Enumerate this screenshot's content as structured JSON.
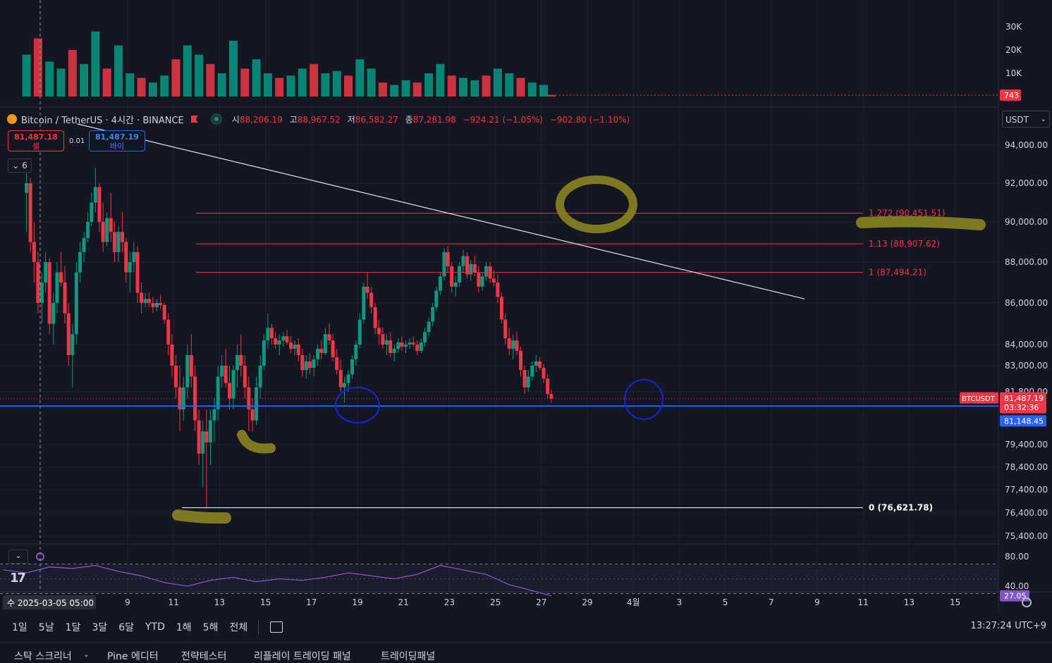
{
  "legend": {
    "symbol": "Bitcoin / TetherUS · 4시간 · BINANCE",
    "open_label": "시",
    "open": "88,206.19",
    "high_label": "고",
    "high": "88,967.52",
    "low_label": "저",
    "low": "86,582.27",
    "close_label": "종",
    "close": "87,281.98",
    "change": "−924.21 (−1.05%)",
    "change2": "−902.80 (−1.10%)"
  },
  "trade": {
    "sell_price": "81,487.18",
    "sell_label": "셀",
    "buy_price": "81,487.19",
    "buy_label": "바이",
    "spread": "0.01"
  },
  "indicators_collapse": "6",
  "currency": "USDT",
  "colors": {
    "up": "#089981",
    "down": "#f23645",
    "bg": "#131722",
    "grid": "#1e222d",
    "hline": "#2962ff",
    "fib": "#f23645",
    "highlighter": "#8a8420",
    "circle": "#1a23d6"
  },
  "chart_data": {
    "type": "candlestick",
    "main_y_ticks": [
      "94,000.00",
      "92,000.00",
      "90,000.00",
      "88,000.00",
      "86,000.00",
      "84,000.00",
      "83,000.00",
      "81,800.00",
      "79,400.00",
      "78,400.00",
      "77,400.00",
      "76,400.00",
      "75,400.00"
    ],
    "volume_ticks": [
      "30K",
      "20K",
      "10K"
    ],
    "volume_last": "743",
    "x_ticks": [
      "9",
      "11",
      "13",
      "15",
      "17",
      "19",
      "21",
      "23",
      "25",
      "27",
      "29",
      "4월",
      "3",
      "5",
      "7",
      "9",
      "11",
      "13",
      "15"
    ],
    "crosshair_date": "수 2025-03-05  05:00",
    "fib_levels": [
      {
        "ratio": "1.272",
        "value": 90451.51,
        "label": "1.272 (90,451.51)"
      },
      {
        "ratio": "1.13",
        "value": 88907.62,
        "label": "1.13 (88,907.62)"
      },
      {
        "ratio": "1",
        "value": 87494.21,
        "label": "1 (87,494.21)"
      },
      {
        "ratio": "0",
        "value": 76621.78,
        "label": "0 (76,621.78)"
      }
    ],
    "horizontal_line": {
      "value": 81148.45,
      "label": "81,148.45"
    },
    "last_price": {
      "symbol": "BTCUSDT",
      "value": "81,487.19",
      "countdown": "03:32:36"
    },
    "trendline": {
      "from": [
        3.2,
        95100
      ],
      "to": [
        34.85,
        86200
      ]
    },
    "rsi": {
      "ticks": [
        "80.00",
        "40.00"
      ],
      "last": "27.05"
    },
    "candles": [
      [
        1,
        91500,
        92500,
        89500,
        92000
      ],
      [
        1.17,
        92000,
        92300,
        88500,
        89000
      ],
      [
        1.33,
        89000,
        90000,
        87000,
        88000
      ],
      [
        1.5,
        88000,
        88500,
        85500,
        86000
      ],
      [
        1.67,
        86000,
        87500,
        85000,
        87000
      ],
      [
        1.83,
        87000,
        88500,
        86500,
        88000
      ],
      [
        2,
        88000,
        88200,
        84500,
        85000
      ],
      [
        2.17,
        85000,
        86500,
        84000,
        86000
      ],
      [
        2.33,
        86000,
        88000,
        85500,
        87500
      ],
      [
        2.5,
        87500,
        88500,
        86800,
        87000
      ],
      [
        2.67,
        87000,
        87800,
        85000,
        85500
      ],
      [
        2.83,
        85500,
        86000,
        83000,
        83500
      ],
      [
        3,
        83500,
        85000,
        82000,
        84500
      ],
      [
        3.17,
        84500,
        88000,
        84000,
        87500
      ],
      [
        3.33,
        87500,
        89000,
        87000,
        88500
      ],
      [
        3.5,
        88500,
        89500,
        88000,
        89200
      ],
      [
        3.67,
        89200,
        90500,
        89000,
        90000
      ],
      [
        3.83,
        90000,
        91500,
        89800,
        91000
      ],
      [
        4,
        91000,
        92800,
        90500,
        91800
      ],
      [
        4.17,
        91800,
        92000,
        89500,
        90000
      ],
      [
        4.33,
        90000,
        91000,
        88500,
        89000
      ],
      [
        4.5,
        89000,
        90500,
        88800,
        90200
      ],
      [
        4.67,
        90200,
        91500,
        89000,
        89500
      ],
      [
        4.83,
        89500,
        90000,
        88000,
        88500
      ],
      [
        5,
        88500,
        89800,
        88000,
        89500
      ],
      [
        5.17,
        89500,
        90500,
        88500,
        89000
      ],
      [
        5.33,
        89000,
        89200,
        87000,
        87500
      ],
      [
        5.5,
        87500,
        88500,
        86500,
        88000
      ],
      [
        5.67,
        88000,
        89000,
        87500,
        88500
      ],
      [
        5.83,
        88500,
        88800,
        86000,
        86500
      ],
      [
        6,
        86500,
        87000,
        85500,
        86000
      ],
      [
        6.17,
        86000,
        86500,
        85800,
        86200
      ],
      [
        6.33,
        86200,
        86500,
        85800,
        86000
      ],
      [
        6.5,
        86000,
        86300,
        85500,
        85800
      ],
      [
        6.67,
        85800,
        86200,
        85600,
        86000
      ],
      [
        6.83,
        86000,
        86400,
        85700,
        85900
      ],
      [
        7,
        85900,
        86000,
        85000,
        85200
      ],
      [
        7.17,
        85200,
        85500,
        83500,
        84000
      ],
      [
        7.33,
        84000,
        84500,
        82500,
        83000
      ],
      [
        7.5,
        83000,
        83500,
        81500,
        82000
      ],
      [
        7.67,
        82000,
        83000,
        80000,
        81000
      ],
      [
        7.83,
        81000,
        82500,
        80500,
        82000
      ],
      [
        8,
        82000,
        84000,
        81500,
        83500
      ],
      [
        8.17,
        83500,
        84500,
        82000,
        82500
      ],
      [
        8.33,
        82500,
        83000,
        80000,
        80500
      ],
      [
        8.5,
        80500,
        81000,
        78500,
        79000
      ],
      [
        8.67,
        79000,
        80500,
        77500,
        80000
      ],
      [
        8.83,
        80000,
        81000,
        76600,
        79500
      ],
      [
        9,
        79500,
        81000,
        78500,
        80500
      ],
      [
        9.17,
        80500,
        81500,
        79500,
        81000
      ],
      [
        9.33,
        81000,
        83000,
        80500,
        82500
      ],
      [
        9.5,
        82500,
        83500,
        82000,
        83000
      ],
      [
        9.67,
        83000,
        83800,
        82000,
        82200
      ],
      [
        9.83,
        82200,
        83000,
        81000,
        81500
      ],
      [
        10,
        81500,
        83000,
        81000,
        82800
      ],
      [
        10.17,
        82800,
        84000,
        82000,
        83500
      ],
      [
        10.33,
        83500,
        84500,
        82500,
        83000
      ],
      [
        10.5,
        83000,
        83500,
        81500,
        82000
      ],
      [
        10.67,
        82000,
        82500,
        80000,
        81000
      ],
      [
        10.83,
        81000,
        81500,
        80000,
        80500
      ],
      [
        11,
        80500,
        82500,
        80300,
        82000
      ],
      [
        11.17,
        82000,
        83500,
        81500,
        83000
      ],
      [
        11.33,
        83000,
        84500,
        82800,
        84200
      ],
      [
        11.5,
        84200,
        85500,
        83800,
        84800
      ],
      [
        11.67,
        84800,
        85000,
        84000,
        84300
      ],
      [
        11.83,
        84300,
        84600,
        83800,
        84000
      ],
      [
        12,
        84000,
        84500,
        83500,
        84200
      ],
      [
        12.17,
        84200,
        84600,
        83900,
        84400
      ],
      [
        12.33,
        84400,
        84700,
        84000,
        84100
      ],
      [
        12.5,
        84100,
        84400,
        83600,
        83800
      ],
      [
        12.67,
        83800,
        84200,
        83500,
        84000
      ],
      [
        12.83,
        84000,
        84300,
        83200,
        83500
      ],
      [
        13,
        83500,
        83800,
        82500,
        82800
      ],
      [
        13.17,
        82800,
        83500,
        82400,
        83200
      ],
      [
        13.33,
        83200,
        83600,
        82600,
        82900
      ],
      [
        13.5,
        82900,
        83500,
        82500,
        83300
      ],
      [
        13.67,
        83300,
        84000,
        83000,
        83800
      ],
      [
        13.83,
        83800,
        84200,
        83300,
        83600
      ],
      [
        14,
        83600,
        84800,
        83500,
        84500
      ],
      [
        14.17,
        84500,
        85000,
        84000,
        84200
      ],
      [
        14.33,
        84200,
        84500,
        83200,
        83400
      ],
      [
        14.5,
        83400,
        83800,
        82600,
        82800
      ],
      [
        14.67,
        82800,
        83300,
        81800,
        82000
      ],
      [
        14.83,
        82000,
        82500,
        81300,
        82200
      ],
      [
        15,
        82200,
        82800,
        81800,
        82600
      ],
      [
        15.17,
        82600,
        83500,
        82400,
        83300
      ],
      [
        15.33,
        83300,
        84200,
        83000,
        84000
      ],
      [
        15.5,
        84000,
        85500,
        83800,
        85200
      ],
      [
        15.67,
        85200,
        87000,
        85000,
        86800
      ],
      [
        15.83,
        86800,
        87500,
        86200,
        86500
      ],
      [
        16,
        86500,
        86800,
        85500,
        85800
      ],
      [
        16.17,
        85800,
        86000,
        84500,
        84800
      ],
      [
        16.33,
        84800,
        85200,
        84000,
        84500
      ],
      [
        16.5,
        84500,
        84800,
        83800,
        84000
      ],
      [
        16.67,
        84000,
        84500,
        83500,
        84200
      ],
      [
        16.83,
        84200,
        84600,
        83400,
        83600
      ],
      [
        17,
        83600,
        84000,
        83200,
        83800
      ],
      [
        17.17,
        83800,
        84300,
        83600,
        84100
      ],
      [
        17.33,
        84100,
        84400,
        83700,
        83900
      ],
      [
        17.5,
        83900,
        84200,
        83600,
        84000
      ],
      [
        17.67,
        84000,
        84300,
        83800,
        84100
      ],
      [
        17.83,
        84100,
        84400,
        83900,
        84000
      ],
      [
        18,
        84000,
        84200,
        83500,
        83700
      ],
      [
        18.17,
        83700,
        84300,
        83600,
        84100
      ],
      [
        18.33,
        84100,
        84800,
        83900,
        84600
      ],
      [
        18.5,
        84600,
        85300,
        84400,
        85100
      ],
      [
        18.67,
        85100,
        86000,
        84900,
        85800
      ],
      [
        18.83,
        85800,
        86800,
        85600,
        86600
      ],
      [
        19,
        86600,
        87500,
        86400,
        87300
      ],
      [
        19.17,
        87300,
        88700,
        87100,
        88500
      ],
      [
        19.33,
        88500,
        88800,
        87500,
        87800
      ],
      [
        19.5,
        87800,
        88000,
        86500,
        86800
      ],
      [
        19.67,
        86800,
        87300,
        86300,
        87000
      ],
      [
        19.83,
        87000,
        88000,
        86800,
        87800
      ],
      [
        20,
        87800,
        88600,
        87500,
        88300
      ],
      [
        20.17,
        88300,
        88500,
        87200,
        87400
      ],
      [
        20.33,
        87400,
        88100,
        87100,
        87900
      ],
      [
        20.5,
        87900,
        88300,
        87300,
        87500
      ],
      [
        20.67,
        87500,
        87800,
        86500,
        86800
      ],
      [
        20.83,
        86800,
        87500,
        86600,
        87300
      ],
      [
        21,
        87300,
        88000,
        87100,
        87800
      ],
      [
        21.17,
        87800,
        88000,
        87000,
        87200
      ],
      [
        21.33,
        87200,
        87600,
        86800,
        87000
      ],
      [
        21.5,
        87000,
        87400,
        86000,
        86300
      ],
      [
        21.67,
        86300,
        86500,
        85000,
        85200
      ],
      [
        21.83,
        85200,
        85500,
        84000,
        84300
      ],
      [
        22,
        84300,
        84800,
        83500,
        83800
      ],
      [
        22.17,
        83800,
        84500,
        83300,
        84200
      ],
      [
        22.33,
        84200,
        84600,
        83500,
        83700
      ],
      [
        22.5,
        83700,
        83900,
        82500,
        82800
      ],
      [
        22.67,
        82800,
        83000,
        81700,
        82000
      ],
      [
        22.83,
        82000,
        82800,
        81800,
        82500
      ],
      [
        23,
        82500,
        83200,
        82300,
        83000
      ],
      [
        23.17,
        83000,
        83500,
        82700,
        83200
      ],
      [
        23.33,
        83200,
        83400,
        82800,
        82900
      ],
      [
        23.5,
        82900,
        83100,
        82200,
        82400
      ],
      [
        23.67,
        82400,
        82600,
        81500,
        81700
      ],
      [
        23.83,
        81700,
        81900,
        81300,
        81487
      ]
    ],
    "rsi_series": [
      [
        0,
        62
      ],
      [
        1,
        58
      ],
      [
        2,
        66
      ],
      [
        3,
        64
      ],
      [
        4,
        68
      ],
      [
        5,
        60
      ],
      [
        6,
        54
      ],
      [
        7,
        45
      ],
      [
        8,
        40
      ],
      [
        9,
        48
      ],
      [
        10,
        52
      ],
      [
        11,
        46
      ],
      [
        12,
        50
      ],
      [
        13,
        48
      ],
      [
        14,
        52
      ],
      [
        15,
        58
      ],
      [
        16,
        54
      ],
      [
        17,
        50
      ],
      [
        18,
        56
      ],
      [
        19,
        68
      ],
      [
        20,
        62
      ],
      [
        21,
        56
      ],
      [
        22,
        42
      ],
      [
        23,
        34
      ],
      [
        23.83,
        27
      ]
    ],
    "volume": [
      [
        1,
        18000
      ],
      [
        1.5,
        25000
      ],
      [
        2,
        15000
      ],
      [
        2.5,
        12000
      ],
      [
        3,
        20000
      ],
      [
        3.5,
        14000
      ],
      [
        4,
        28000
      ],
      [
        4.5,
        12000
      ],
      [
        5,
        22000
      ],
      [
        5.5,
        10000
      ],
      [
        6,
        8000
      ],
      [
        6.5,
        6000
      ],
      [
        7,
        9000
      ],
      [
        7.5,
        16000
      ],
      [
        8,
        22000
      ],
      [
        8.5,
        18000
      ],
      [
        9,
        14000
      ],
      [
        9.5,
        10000
      ],
      [
        10,
        24000
      ],
      [
        10.5,
        12000
      ],
      [
        11,
        16000
      ],
      [
        11.5,
        10000
      ],
      [
        12,
        8000
      ],
      [
        12.5,
        9000
      ],
      [
        13,
        12000
      ],
      [
        13.5,
        14000
      ],
      [
        14,
        10000
      ],
      [
        14.5,
        11000
      ],
      [
        15,
        9000
      ],
      [
        15.5,
        16000
      ],
      [
        16,
        12000
      ],
      [
        16.5,
        6000
      ],
      [
        17,
        5000
      ],
      [
        17.5,
        7000
      ],
      [
        18,
        6000
      ],
      [
        18.5,
        10000
      ],
      [
        19,
        14000
      ],
      [
        19.5,
        9000
      ],
      [
        20,
        8000
      ],
      [
        20.5,
        7000
      ],
      [
        21,
        9000
      ],
      [
        21.5,
        12000
      ],
      [
        22,
        10000
      ],
      [
        22.5,
        8000
      ],
      [
        23,
        6000
      ],
      [
        23.5,
        5000
      ],
      [
        23.83,
        743
      ]
    ]
  },
  "timebar": {
    "ranges": [
      "1일",
      "5날",
      "1달",
      "3달",
      "6달",
      "YTD",
      "1해",
      "5해",
      "전체"
    ],
    "time": "13:27:24 UTC+9"
  },
  "bottom_tabs": [
    "스탁 스크리너",
    "Pine 에디터",
    "전략테스터",
    "리플레이 트레이딩 패널",
    "트레이딩패널"
  ]
}
